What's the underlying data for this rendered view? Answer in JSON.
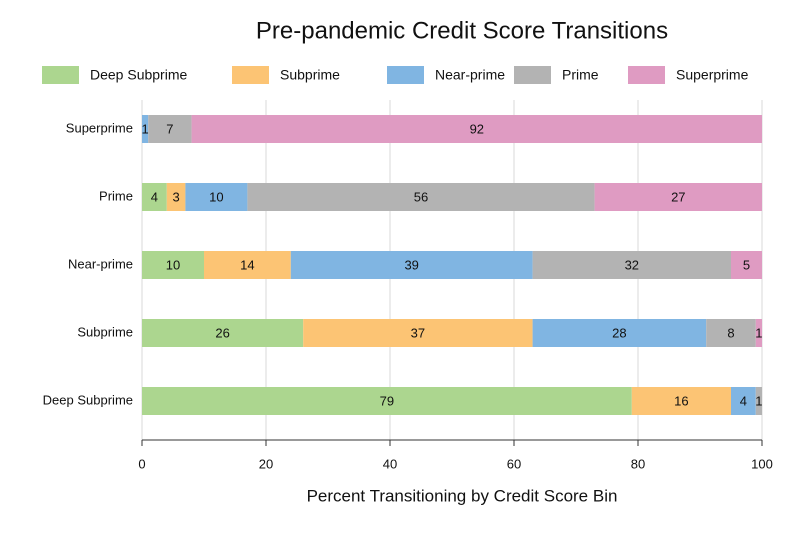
{
  "chart_data": {
    "type": "stacked-barh",
    "title": "Pre-pandemic Credit Score Transitions",
    "xlabel": "Percent Transitioning by Credit Score Bin",
    "categories": [
      "Superprime",
      "Prime",
      "Near-prime",
      "Subprime",
      "Deep Subprime"
    ],
    "series": [
      {
        "name": "Deep Subprime",
        "color": "#acd68f",
        "values": [
          0,
          4,
          10,
          26,
          79
        ]
      },
      {
        "name": "Subprime",
        "color": "#fcc474",
        "values": [
          0,
          3,
          14,
          37,
          16
        ]
      },
      {
        "name": "Near-prime",
        "color": "#80b5e2",
        "values": [
          1,
          10,
          39,
          28,
          4
        ]
      },
      {
        "name": "Prime",
        "color": "#b3b3b3",
        "values": [
          7,
          56,
          32,
          8,
          1
        ]
      },
      {
        "name": "Superprime",
        "color": "#df9bc2",
        "values": [
          92,
          27,
          5,
          1,
          0
        ]
      }
    ],
    "xlim": [
      0,
      100
    ],
    "xticks": [
      0,
      20,
      40,
      60,
      80,
      100
    ],
    "grid": true,
    "legend": "top"
  }
}
